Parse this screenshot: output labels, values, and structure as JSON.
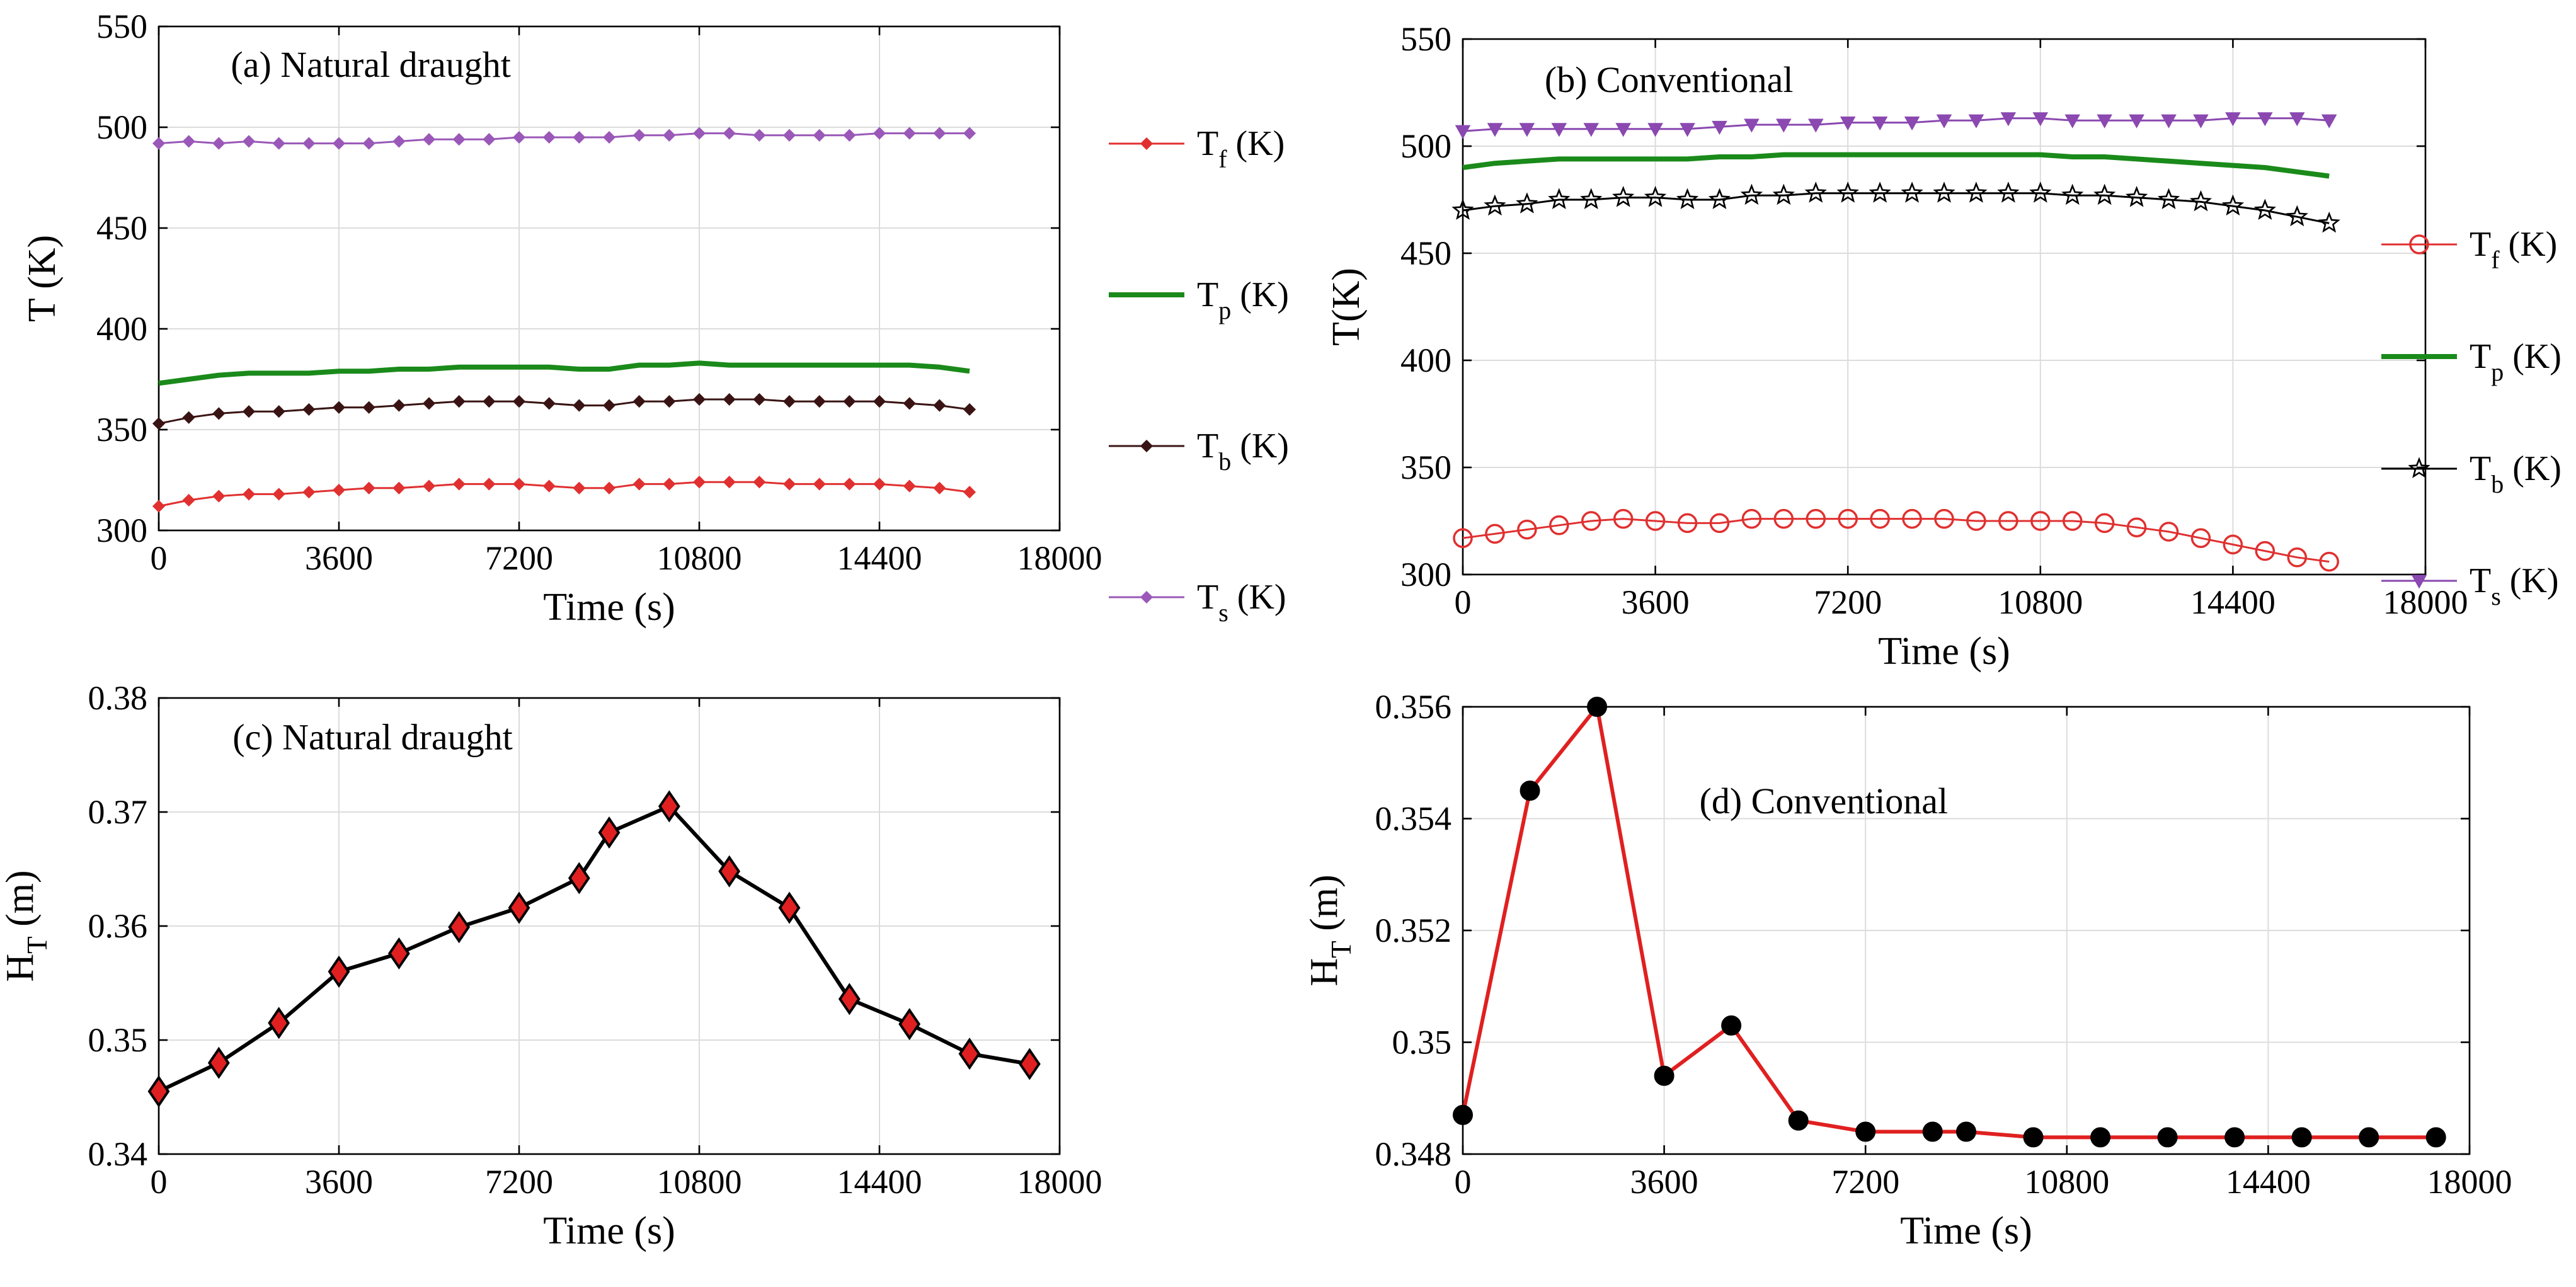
{
  "chart_data": [
    {
      "panel": "a",
      "type": "line",
      "title": "(a) Natural draught",
      "xlabel": "Time (s)",
      "ylabel": "T (K)",
      "xlim": [
        0,
        18000
      ],
      "ylim": [
        300,
        550
      ],
      "xticks": [
        0,
        3600,
        7200,
        10800,
        14400,
        18000
      ],
      "yticks": [
        300,
        350,
        400,
        450,
        500,
        550
      ],
      "grid": true,
      "legend_position": "right",
      "x": [
        0,
        600,
        1200,
        1800,
        2400,
        3000,
        3600,
        4200,
        4800,
        5400,
        6000,
        6600,
        7200,
        7800,
        8400,
        9000,
        9600,
        10200,
        10800,
        11400,
        12000,
        12600,
        13200,
        13800,
        14400,
        15000,
        15600,
        16200
      ],
      "series": [
        {
          "name": "Tf (K)",
          "legend_main": "T",
          "legend_sub": "f",
          "legend_tail": "(K)",
          "color": "#e03030",
          "marker": "diamond-small",
          "line_width": 3,
          "values": [
            312,
            315,
            317,
            318,
            318,
            319,
            320,
            321,
            321,
            322,
            323,
            323,
            323,
            322,
            321,
            321,
            323,
            323,
            324,
            324,
            324,
            323,
            323,
            323,
            323,
            322,
            321,
            319
          ]
        },
        {
          "name": "Tp (K)",
          "legend_main": "T",
          "legend_sub": "p",
          "legend_tail": "(K)",
          "color": "#1a8a1a",
          "marker": "none",
          "line_width": 8,
          "values": [
            373,
            375,
            377,
            378,
            378,
            378,
            379,
            379,
            380,
            380,
            381,
            381,
            381,
            381,
            380,
            380,
            382,
            382,
            383,
            382,
            382,
            382,
            382,
            382,
            382,
            382,
            381,
            379
          ]
        },
        {
          "name": "Tb (K)",
          "legend_main": "T",
          "legend_sub": "b",
          "legend_tail": "(K)",
          "color": "#3a1414",
          "marker": "diamond-small",
          "line_width": 3,
          "values": [
            353,
            356,
            358,
            359,
            359,
            360,
            361,
            361,
            362,
            363,
            364,
            364,
            364,
            363,
            362,
            362,
            364,
            364,
            365,
            365,
            365,
            364,
            364,
            364,
            364,
            363,
            362,
            360
          ]
        },
        {
          "name": "Ts (K)",
          "legend_main": "T",
          "legend_sub": "s",
          "legend_tail": "(K)",
          "color": "#9a58b8",
          "marker": "diamond-small",
          "line_width": 3,
          "values": [
            492,
            493,
            492,
            493,
            492,
            492,
            492,
            492,
            493,
            494,
            494,
            494,
            495,
            495,
            495,
            495,
            496,
            496,
            497,
            497,
            496,
            496,
            496,
            496,
            497,
            497,
            497,
            497
          ]
        }
      ]
    },
    {
      "panel": "b",
      "type": "line",
      "title": "(b) Conventional",
      "xlabel": "Time (s)",
      "ylabel": "T(K)",
      "xlim": [
        0,
        18000
      ],
      "ylim": [
        300,
        550
      ],
      "xticks": [
        0,
        3600,
        7200,
        10800,
        14400,
        18000
      ],
      "yticks": [
        300,
        350,
        400,
        450,
        500,
        550
      ],
      "grid": true,
      "legend_position": "right",
      "x": [
        0,
        600,
        1200,
        1800,
        2400,
        3000,
        3600,
        4200,
        4800,
        5400,
        6000,
        6600,
        7200,
        7800,
        8400,
        9000,
        9600,
        10200,
        10800,
        11400,
        12000,
        12600,
        13200,
        13800,
        14400,
        15000,
        15600,
        16200
      ],
      "series": [
        {
          "name": "Tf (K)",
          "legend_main": "T",
          "legend_sub": "f",
          "legend_tail": "(K)",
          "color": "#e03030",
          "marker": "circle-open",
          "line_width": 3,
          "values": [
            317,
            319,
            321,
            323,
            325,
            326,
            325,
            324,
            324,
            326,
            326,
            326,
            326,
            326,
            326,
            326,
            325,
            325,
            325,
            325,
            324,
            322,
            320,
            317,
            314,
            311,
            308,
            306
          ]
        },
        {
          "name": "Tp (K)",
          "legend_main": "T",
          "legend_sub": "p",
          "legend_tail": "(K)",
          "color": "#1a8a1a",
          "marker": "none",
          "line_width": 8,
          "values": [
            490,
            492,
            493,
            494,
            494,
            494,
            494,
            494,
            495,
            495,
            496,
            496,
            496,
            496,
            496,
            496,
            496,
            496,
            496,
            495,
            495,
            494,
            493,
            492,
            491,
            490,
            488,
            486
          ]
        },
        {
          "name": "Tb (K)",
          "legend_main": "T",
          "legend_sub": "b",
          "legend_tail": "(K)",
          "color": "#000000",
          "marker": "star-open",
          "line_width": 3,
          "values": [
            470,
            472,
            473,
            475,
            475,
            476,
            476,
            475,
            475,
            477,
            477,
            478,
            478,
            478,
            478,
            478,
            478,
            478,
            478,
            477,
            477,
            476,
            475,
            474,
            472,
            470,
            467,
            464
          ]
        },
        {
          "name": "Ts (K)",
          "legend_main": "T",
          "legend_sub": "s",
          "legend_tail": "(K)",
          "color": "#8a48b0",
          "marker": "triangle-down",
          "line_width": 3,
          "values": [
            507,
            508,
            508,
            508,
            508,
            508,
            508,
            508,
            509,
            510,
            510,
            510,
            511,
            511,
            511,
            512,
            512,
            513,
            513,
            512,
            512,
            512,
            512,
            512,
            513,
            513,
            513,
            512
          ]
        }
      ]
    },
    {
      "panel": "c",
      "type": "line",
      "title": "(c) Natural draught",
      "xlabel": "Time (s)",
      "ylabel": "H_T (m)",
      "ylabel_main": "H",
      "ylabel_sub": "T",
      "ylabel_tail": "(m)",
      "xlim": [
        0,
        18000
      ],
      "ylim": [
        0.34,
        0.38
      ],
      "xticks": [
        0,
        3600,
        7200,
        10800,
        14400,
        18000
      ],
      "yticks": [
        "0.34",
        "0.35",
        "0.36",
        "0.37",
        "0.38"
      ],
      "grid": true,
      "x": [
        0,
        1200,
        2400,
        3600,
        4800,
        6000,
        7200,
        8400,
        9000,
        10200,
        11400,
        12600,
        13800,
        15000,
        16200,
        17400
      ],
      "series": [
        {
          "name": "H_T",
          "color": "#000000",
          "marker": "diamond-filled",
          "marker_color": "#e02020",
          "line_width": 6,
          "values": [
            0.3455,
            0.348,
            0.3515,
            0.356,
            0.3576,
            0.3599,
            0.3616,
            0.3642,
            0.3682,
            0.3705,
            0.3648,
            0.3616,
            0.3536,
            0.3514,
            0.3488,
            0.3479
          ]
        }
      ]
    },
    {
      "panel": "d",
      "type": "line",
      "title": "(d) Conventional",
      "xlabel": "Time (s)",
      "ylabel": "H_T (m)",
      "ylabel_main": "H",
      "ylabel_sub": "T",
      "ylabel_tail": "(m)",
      "xlim": [
        0,
        18000
      ],
      "ylim": [
        0.348,
        0.356
      ],
      "xticks": [
        0,
        3600,
        7200,
        10800,
        14400,
        18000
      ],
      "yticks": [
        "0.348",
        "0.35",
        "0.352",
        "0.354",
        "0.356"
      ],
      "grid": true,
      "x": [
        0,
        1200,
        2400,
        3600,
        4800,
        6000,
        7200,
        8400,
        9000,
        10200,
        11400,
        12600,
        13800,
        15000,
        16200,
        17400
      ],
      "series": [
        {
          "name": "H_T",
          "color": "#e02020",
          "marker": "circle-filled",
          "marker_color": "#000000",
          "line_width": 6,
          "values": [
            0.3487,
            0.3545,
            0.356,
            0.3494,
            0.3503,
            0.3486,
            0.3484,
            0.3484,
            0.3484,
            0.3483,
            0.3483,
            0.3483,
            0.3483,
            0.3483,
            0.3483,
            0.3483
          ]
        }
      ]
    }
  ]
}
